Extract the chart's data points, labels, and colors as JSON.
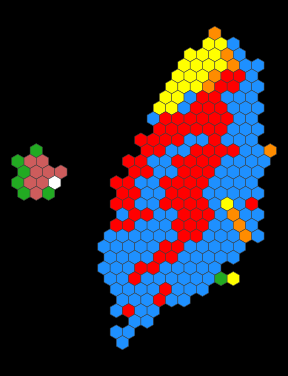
{
  "background_color": "#000000",
  "hex_size": 7.2,
  "constituencies": [
    {
      "col": 10,
      "row": 0,
      "color": "#FF8C00"
    },
    {
      "col": 9,
      "row": 1,
      "color": "#FFFF00"
    },
    {
      "col": 10,
      "row": 1,
      "color": "#FFFF00"
    },
    {
      "col": 11,
      "row": 1,
      "color": "#1E90FF"
    },
    {
      "col": 8,
      "row": 2,
      "color": "#FFFF00"
    },
    {
      "col": 9,
      "row": 2,
      "color": "#FFFF00"
    },
    {
      "col": 10,
      "row": 2,
      "color": "#FFFF00"
    },
    {
      "col": 11,
      "row": 2,
      "color": "#FF8C00"
    },
    {
      "col": 12,
      "row": 2,
      "color": "#1E90FF"
    },
    {
      "col": 7,
      "row": 3,
      "color": "#FFFF00"
    },
    {
      "col": 8,
      "row": 3,
      "color": "#FFFF00"
    },
    {
      "col": 9,
      "row": 3,
      "color": "#FFFF00"
    },
    {
      "col": 10,
      "row": 3,
      "color": "#FFFF00"
    },
    {
      "col": 11,
      "row": 3,
      "color": "#FF8C00"
    },
    {
      "col": 12,
      "row": 3,
      "color": "#1E90FF"
    },
    {
      "col": 13,
      "row": 3,
      "color": "#1E90FF"
    },
    {
      "col": 7,
      "row": 4,
      "color": "#FFFF00"
    },
    {
      "col": 8,
      "row": 4,
      "color": "#FFFF00"
    },
    {
      "col": 9,
      "row": 4,
      "color": "#FFFF00"
    },
    {
      "col": 10,
      "row": 4,
      "color": "#FF8C00"
    },
    {
      "col": 11,
      "row": 4,
      "color": "#FF0000"
    },
    {
      "col": 12,
      "row": 4,
      "color": "#FF0000"
    },
    {
      "col": 13,
      "row": 4,
      "color": "#1E90FF"
    },
    {
      "col": 6,
      "row": 5,
      "color": "#FFFF00"
    },
    {
      "col": 7,
      "row": 5,
      "color": "#FFFF00"
    },
    {
      "col": 8,
      "row": 5,
      "color": "#FFFF00"
    },
    {
      "col": 9,
      "row": 5,
      "color": "#FF8C00"
    },
    {
      "col": 10,
      "row": 5,
      "color": "#FF0000"
    },
    {
      "col": 11,
      "row": 5,
      "color": "#FF0000"
    },
    {
      "col": 12,
      "row": 5,
      "color": "#1E90FF"
    },
    {
      "col": 13,
      "row": 5,
      "color": "#1E90FF"
    },
    {
      "col": 6,
      "row": 6,
      "color": "#FFFF00"
    },
    {
      "col": 7,
      "row": 6,
      "color": "#FFFF00"
    },
    {
      "col": 8,
      "row": 6,
      "color": "#1E90FF"
    },
    {
      "col": 9,
      "row": 6,
      "color": "#FF0000"
    },
    {
      "col": 10,
      "row": 6,
      "color": "#FF0000"
    },
    {
      "col": 11,
      "row": 6,
      "color": "#1E90FF"
    },
    {
      "col": 12,
      "row": 6,
      "color": "#1E90FF"
    },
    {
      "col": 13,
      "row": 6,
      "color": "#1E90FF"
    },
    {
      "col": 5,
      "row": 7,
      "color": "#FFFF00"
    },
    {
      "col": 6,
      "row": 7,
      "color": "#FFFF00"
    },
    {
      "col": 7,
      "row": 7,
      "color": "#1E90FF"
    },
    {
      "col": 8,
      "row": 7,
      "color": "#FF0000"
    },
    {
      "col": 9,
      "row": 7,
      "color": "#FF0000"
    },
    {
      "col": 10,
      "row": 7,
      "color": "#FF0000"
    },
    {
      "col": 11,
      "row": 7,
      "color": "#1E90FF"
    },
    {
      "col": 12,
      "row": 7,
      "color": "#1E90FF"
    },
    {
      "col": 13,
      "row": 7,
      "color": "#1E90FF"
    },
    {
      "col": 5,
      "row": 8,
      "color": "#1E90FF"
    },
    {
      "col": 6,
      "row": 8,
      "color": "#FF0000"
    },
    {
      "col": 7,
      "row": 8,
      "color": "#FF0000"
    },
    {
      "col": 8,
      "row": 8,
      "color": "#FF0000"
    },
    {
      "col": 9,
      "row": 8,
      "color": "#FF0000"
    },
    {
      "col": 10,
      "row": 8,
      "color": "#FF0000"
    },
    {
      "col": 11,
      "row": 8,
      "color": "#FF0000"
    },
    {
      "col": 12,
      "row": 8,
      "color": "#1E90FF"
    },
    {
      "col": 13,
      "row": 8,
      "color": "#1E90FF"
    },
    {
      "col": 5,
      "row": 9,
      "color": "#FF0000"
    },
    {
      "col": 6,
      "row": 9,
      "color": "#FF0000"
    },
    {
      "col": 7,
      "row": 9,
      "color": "#FF0000"
    },
    {
      "col": 8,
      "row": 9,
      "color": "#FF0000"
    },
    {
      "col": 9,
      "row": 9,
      "color": "#FF0000"
    },
    {
      "col": 10,
      "row": 9,
      "color": "#FF0000"
    },
    {
      "col": 11,
      "row": 9,
      "color": "#1E90FF"
    },
    {
      "col": 12,
      "row": 9,
      "color": "#1E90FF"
    },
    {
      "col": 13,
      "row": 9,
      "color": "#1E90FF"
    },
    {
      "col": 4,
      "row": 10,
      "color": "#FF0000"
    },
    {
      "col": 5,
      "row": 10,
      "color": "#FF0000"
    },
    {
      "col": 6,
      "row": 10,
      "color": "#FF0000"
    },
    {
      "col": 7,
      "row": 10,
      "color": "#FF0000"
    },
    {
      "col": 8,
      "row": 10,
      "color": "#1E90FF"
    },
    {
      "col": 9,
      "row": 10,
      "color": "#1E90FF"
    },
    {
      "col": 10,
      "row": 10,
      "color": "#FF0000"
    },
    {
      "col": 11,
      "row": 10,
      "color": "#1E90FF"
    },
    {
      "col": 12,
      "row": 10,
      "color": "#1E90FF"
    },
    {
      "col": 13,
      "row": 10,
      "color": "#1E90FF"
    },
    {
      "col": 4,
      "row": 11,
      "color": "#FF0000"
    },
    {
      "col": 5,
      "row": 11,
      "color": "#FF0000"
    },
    {
      "col": 6,
      "row": 11,
      "color": "#1E90FF"
    },
    {
      "col": 7,
      "row": 11,
      "color": "#1E90FF"
    },
    {
      "col": 8,
      "row": 11,
      "color": "#FF0000"
    },
    {
      "col": 9,
      "row": 11,
      "color": "#FF0000"
    },
    {
      "col": 10,
      "row": 11,
      "color": "#FF0000"
    },
    {
      "col": 11,
      "row": 11,
      "color": "#FF0000"
    },
    {
      "col": 12,
      "row": 11,
      "color": "#1E90FF"
    },
    {
      "col": 13,
      "row": 11,
      "color": "#1E90FF"
    },
    {
      "col": 14,
      "row": 11,
      "color": "#FF8C00"
    },
    {
      "col": 3,
      "row": 12,
      "color": "#FF0000"
    },
    {
      "col": 4,
      "row": 12,
      "color": "#FF0000"
    },
    {
      "col": 5,
      "row": 12,
      "color": "#1E90FF"
    },
    {
      "col": 6,
      "row": 12,
      "color": "#1E90FF"
    },
    {
      "col": 7,
      "row": 12,
      "color": "#FF0000"
    },
    {
      "col": 8,
      "row": 12,
      "color": "#FF0000"
    },
    {
      "col": 9,
      "row": 12,
      "color": "#FF0000"
    },
    {
      "col": 10,
      "row": 12,
      "color": "#FF0000"
    },
    {
      "col": 11,
      "row": 12,
      "color": "#1E90FF"
    },
    {
      "col": 12,
      "row": 12,
      "color": "#1E90FF"
    },
    {
      "col": 13,
      "row": 12,
      "color": "#1E90FF"
    },
    {
      "col": 14,
      "row": 12,
      "color": "#1E90FF"
    },
    {
      "col": 3,
      "row": 13,
      "color": "#FF0000"
    },
    {
      "col": 4,
      "row": 13,
      "color": "#FF0000"
    },
    {
      "col": 5,
      "row": 13,
      "color": "#1E90FF"
    },
    {
      "col": 6,
      "row": 13,
      "color": "#1E90FF"
    },
    {
      "col": 7,
      "row": 13,
      "color": "#FF0000"
    },
    {
      "col": 8,
      "row": 13,
      "color": "#FF0000"
    },
    {
      "col": 9,
      "row": 13,
      "color": "#FF0000"
    },
    {
      "col": 10,
      "row": 13,
      "color": "#1E90FF"
    },
    {
      "col": 11,
      "row": 13,
      "color": "#1E90FF"
    },
    {
      "col": 12,
      "row": 13,
      "color": "#1E90FF"
    },
    {
      "col": 13,
      "row": 13,
      "color": "#1E90FF"
    },
    {
      "col": 2,
      "row": 14,
      "color": "#FF0000"
    },
    {
      "col": 3,
      "row": 14,
      "color": "#FF0000"
    },
    {
      "col": 4,
      "row": 14,
      "color": "#1E90FF"
    },
    {
      "col": 5,
      "row": 14,
      "color": "#1E90FF"
    },
    {
      "col": 6,
      "row": 14,
      "color": "#FF0000"
    },
    {
      "col": 7,
      "row": 14,
      "color": "#FF0000"
    },
    {
      "col": 8,
      "row": 14,
      "color": "#FF0000"
    },
    {
      "col": 9,
      "row": 14,
      "color": "#FF0000"
    },
    {
      "col": 10,
      "row": 14,
      "color": "#1E90FF"
    },
    {
      "col": 11,
      "row": 14,
      "color": "#1E90FF"
    },
    {
      "col": 12,
      "row": 14,
      "color": "#1E90FF"
    },
    {
      "col": 13,
      "row": 14,
      "color": "#1E90FF"
    },
    {
      "col": 2,
      "row": 15,
      "color": "#FF0000"
    },
    {
      "col": 3,
      "row": 15,
      "color": "#FF0000"
    },
    {
      "col": 4,
      "row": 15,
      "color": "#1E90FF"
    },
    {
      "col": 5,
      "row": 15,
      "color": "#1E90FF"
    },
    {
      "col": 6,
      "row": 15,
      "color": "#FF0000"
    },
    {
      "col": 7,
      "row": 15,
      "color": "#FF0000"
    },
    {
      "col": 8,
      "row": 15,
      "color": "#FF0000"
    },
    {
      "col": 9,
      "row": 15,
      "color": "#1E90FF"
    },
    {
      "col": 10,
      "row": 15,
      "color": "#1E90FF"
    },
    {
      "col": 11,
      "row": 15,
      "color": "#1E90FF"
    },
    {
      "col": 12,
      "row": 15,
      "color": "#1E90FF"
    },
    {
      "col": 13,
      "row": 15,
      "color": "#1E90FF"
    },
    {
      "col": 2,
      "row": 16,
      "color": "#FF0000"
    },
    {
      "col": 3,
      "row": 16,
      "color": "#FF0000"
    },
    {
      "col": 4,
      "row": 16,
      "color": "#1E90FF"
    },
    {
      "col": 5,
      "row": 16,
      "color": "#1E90FF"
    },
    {
      "col": 6,
      "row": 16,
      "color": "#FF0000"
    },
    {
      "col": 7,
      "row": 16,
      "color": "#FF0000"
    },
    {
      "col": 8,
      "row": 16,
      "color": "#FF0000"
    },
    {
      "col": 9,
      "row": 16,
      "color": "#FF0000"
    },
    {
      "col": 10,
      "row": 16,
      "color": "#1E90FF"
    },
    {
      "col": 11,
      "row": 16,
      "color": "#FFFF00"
    },
    {
      "col": 12,
      "row": 16,
      "color": "#1E90FF"
    },
    {
      "col": 13,
      "row": 16,
      "color": "#FF0000"
    },
    {
      "col": 2,
      "row": 17,
      "color": "#1E90FF"
    },
    {
      "col": 3,
      "row": 17,
      "color": "#FF0000"
    },
    {
      "col": 4,
      "row": 17,
      "color": "#FF0000"
    },
    {
      "col": 5,
      "row": 17,
      "color": "#1E90FF"
    },
    {
      "col": 6,
      "row": 17,
      "color": "#1E90FF"
    },
    {
      "col": 7,
      "row": 17,
      "color": "#FF0000"
    },
    {
      "col": 8,
      "row": 17,
      "color": "#FF0000"
    },
    {
      "col": 9,
      "row": 17,
      "color": "#FF0000"
    },
    {
      "col": 10,
      "row": 17,
      "color": "#1E90FF"
    },
    {
      "col": 11,
      "row": 17,
      "color": "#FF8C00"
    },
    {
      "col": 12,
      "row": 17,
      "color": "#1E90FF"
    },
    {
      "col": 13,
      "row": 17,
      "color": "#1E90FF"
    },
    {
      "col": 2,
      "row": 18,
      "color": "#FF0000"
    },
    {
      "col": 3,
      "row": 18,
      "color": "#FF0000"
    },
    {
      "col": 4,
      "row": 18,
      "color": "#1E90FF"
    },
    {
      "col": 5,
      "row": 18,
      "color": "#1E90FF"
    },
    {
      "col": 6,
      "row": 18,
      "color": "#1E90FF"
    },
    {
      "col": 7,
      "row": 18,
      "color": "#FF0000"
    },
    {
      "col": 8,
      "row": 18,
      "color": "#FF0000"
    },
    {
      "col": 9,
      "row": 18,
      "color": "#FF0000"
    },
    {
      "col": 10,
      "row": 18,
      "color": "#1E90FF"
    },
    {
      "col": 11,
      "row": 18,
      "color": "#1E90FF"
    },
    {
      "col": 12,
      "row": 18,
      "color": "#FF8C00"
    },
    {
      "col": 13,
      "row": 18,
      "color": "#1E90FF"
    },
    {
      "col": 1,
      "row": 19,
      "color": "#1E90FF"
    },
    {
      "col": 2,
      "row": 19,
      "color": "#1E90FF"
    },
    {
      "col": 3,
      "row": 19,
      "color": "#1E90FF"
    },
    {
      "col": 4,
      "row": 19,
      "color": "#1E90FF"
    },
    {
      "col": 5,
      "row": 19,
      "color": "#1E90FF"
    },
    {
      "col": 6,
      "row": 19,
      "color": "#1E90FF"
    },
    {
      "col": 7,
      "row": 19,
      "color": "#FF0000"
    },
    {
      "col": 8,
      "row": 19,
      "color": "#FF0000"
    },
    {
      "col": 9,
      "row": 19,
      "color": "#1E90FF"
    },
    {
      "col": 10,
      "row": 19,
      "color": "#1E90FF"
    },
    {
      "col": 11,
      "row": 19,
      "color": "#1E90FF"
    },
    {
      "col": 12,
      "row": 19,
      "color": "#FF8C00"
    },
    {
      "col": 13,
      "row": 19,
      "color": "#1E90FF"
    },
    {
      "col": 1,
      "row": 20,
      "color": "#1E90FF"
    },
    {
      "col": 2,
      "row": 20,
      "color": "#1E90FF"
    },
    {
      "col": 3,
      "row": 20,
      "color": "#1E90FF"
    },
    {
      "col": 4,
      "row": 20,
      "color": "#1E90FF"
    },
    {
      "col": 5,
      "row": 20,
      "color": "#1E90FF"
    },
    {
      "col": 6,
      "row": 20,
      "color": "#FF0000"
    },
    {
      "col": 7,
      "row": 20,
      "color": "#FF0000"
    },
    {
      "col": 8,
      "row": 20,
      "color": "#1E90FF"
    },
    {
      "col": 9,
      "row": 20,
      "color": "#1E90FF"
    },
    {
      "col": 10,
      "row": 20,
      "color": "#1E90FF"
    },
    {
      "col": 11,
      "row": 20,
      "color": "#1E90FF"
    },
    {
      "col": 12,
      "row": 20,
      "color": "#1E90FF"
    },
    {
      "col": 1,
      "row": 21,
      "color": "#1E90FF"
    },
    {
      "col": 2,
      "row": 21,
      "color": "#1E90FF"
    },
    {
      "col": 3,
      "row": 21,
      "color": "#1E90FF"
    },
    {
      "col": 4,
      "row": 21,
      "color": "#1E90FF"
    },
    {
      "col": 5,
      "row": 21,
      "color": "#FF0000"
    },
    {
      "col": 6,
      "row": 21,
      "color": "#FF0000"
    },
    {
      "col": 7,
      "row": 21,
      "color": "#1E90FF"
    },
    {
      "col": 8,
      "row": 21,
      "color": "#1E90FF"
    },
    {
      "col": 9,
      "row": 21,
      "color": "#1E90FF"
    },
    {
      "col": 10,
      "row": 21,
      "color": "#1E90FF"
    },
    {
      "col": 11,
      "row": 21,
      "color": "#1E90FF"
    },
    {
      "col": 1,
      "row": 22,
      "color": "#1E90FF"
    },
    {
      "col": 2,
      "row": 22,
      "color": "#1E90FF"
    },
    {
      "col": 3,
      "row": 22,
      "color": "#1E90FF"
    },
    {
      "col": 4,
      "row": 22,
      "color": "#FF0000"
    },
    {
      "col": 5,
      "row": 22,
      "color": "#FF0000"
    },
    {
      "col": 6,
      "row": 22,
      "color": "#1E90FF"
    },
    {
      "col": 7,
      "row": 22,
      "color": "#1E90FF"
    },
    {
      "col": 8,
      "row": 22,
      "color": "#1E90FF"
    },
    {
      "col": 9,
      "row": 22,
      "color": "#1E90FF"
    },
    {
      "col": 10,
      "row": 22,
      "color": "#1E90FF"
    },
    {
      "col": 1,
      "row": 23,
      "color": "#1E90FF"
    },
    {
      "col": 2,
      "row": 23,
      "color": "#1E90FF"
    },
    {
      "col": 3,
      "row": 23,
      "color": "#FF0000"
    },
    {
      "col": 4,
      "row": 23,
      "color": "#1E90FF"
    },
    {
      "col": 5,
      "row": 23,
      "color": "#1E90FF"
    },
    {
      "col": 6,
      "row": 23,
      "color": "#1E90FF"
    },
    {
      "col": 7,
      "row": 23,
      "color": "#1E90FF"
    },
    {
      "col": 8,
      "row": 23,
      "color": "#1E90FF"
    },
    {
      "col": 9,
      "row": 23,
      "color": "#1E90FF"
    },
    {
      "col": 10,
      "row": 23,
      "color": "#22AA22"
    },
    {
      "col": 11,
      "row": 23,
      "color": "#FFFF00"
    },
    {
      "col": 2,
      "row": 24,
      "color": "#1E90FF"
    },
    {
      "col": 3,
      "row": 24,
      "color": "#1E90FF"
    },
    {
      "col": 4,
      "row": 24,
      "color": "#1E90FF"
    },
    {
      "col": 5,
      "row": 24,
      "color": "#1E90FF"
    },
    {
      "col": 6,
      "row": 24,
      "color": "#FF0000"
    },
    {
      "col": 7,
      "row": 24,
      "color": "#1E90FF"
    },
    {
      "col": 8,
      "row": 24,
      "color": "#1E90FF"
    },
    {
      "col": 9,
      "row": 24,
      "color": "#1E90FF"
    },
    {
      "col": 2,
      "row": 25,
      "color": "#1E90FF"
    },
    {
      "col": 3,
      "row": 25,
      "color": "#1E90FF"
    },
    {
      "col": 4,
      "row": 25,
      "color": "#1E90FF"
    },
    {
      "col": 5,
      "row": 25,
      "color": "#FF0000"
    },
    {
      "col": 6,
      "row": 25,
      "color": "#1E90FF"
    },
    {
      "col": 7,
      "row": 25,
      "color": "#1E90FF"
    },
    {
      "col": 2,
      "row": 26,
      "color": "#1E90FF"
    },
    {
      "col": 3,
      "row": 26,
      "color": "#FF0000"
    },
    {
      "col": 4,
      "row": 26,
      "color": "#1E90FF"
    },
    {
      "col": 5,
      "row": 26,
      "color": "#1E90FF"
    },
    {
      "col": 3,
      "row": 27,
      "color": "#1E90FF"
    },
    {
      "col": 4,
      "row": 27,
      "color": "#1E90FF"
    },
    {
      "col": 2,
      "row": 28,
      "color": "#1E90FF"
    },
    {
      "col": 3,
      "row": 28,
      "color": "#1E90FF"
    },
    {
      "col": 2,
      "row": 29,
      "color": "#1E90FF"
    },
    {
      "col": -5,
      "row": 11,
      "color": "#22AA22"
    },
    {
      "col": -5,
      "row": 12,
      "color": "#CD5C5C"
    },
    {
      "col": -6,
      "row": 12,
      "color": "#22AA22"
    },
    {
      "col": -4,
      "row": 12,
      "color": "#CD5C5C"
    },
    {
      "col": -6,
      "row": 13,
      "color": "#22AA22"
    },
    {
      "col": -5,
      "row": 13,
      "color": "#CD5C5C"
    },
    {
      "col": -4,
      "row": 13,
      "color": "#CD5C5C"
    },
    {
      "col": -3,
      "row": 13,
      "color": "#CD5C5C"
    },
    {
      "col": -6,
      "row": 14,
      "color": "#22AA22"
    },
    {
      "col": -5,
      "row": 14,
      "color": "#CD5C5C"
    },
    {
      "col": -4,
      "row": 14,
      "color": "#CD5C5C"
    },
    {
      "col": -3,
      "row": 14,
      "color": "#FFFFFF"
    },
    {
      "col": -6,
      "row": 15,
      "color": "#22AA22"
    },
    {
      "col": -5,
      "row": 15,
      "color": "#CD5C5C"
    },
    {
      "col": -4,
      "row": 15,
      "color": "#22AA22"
    }
  ]
}
